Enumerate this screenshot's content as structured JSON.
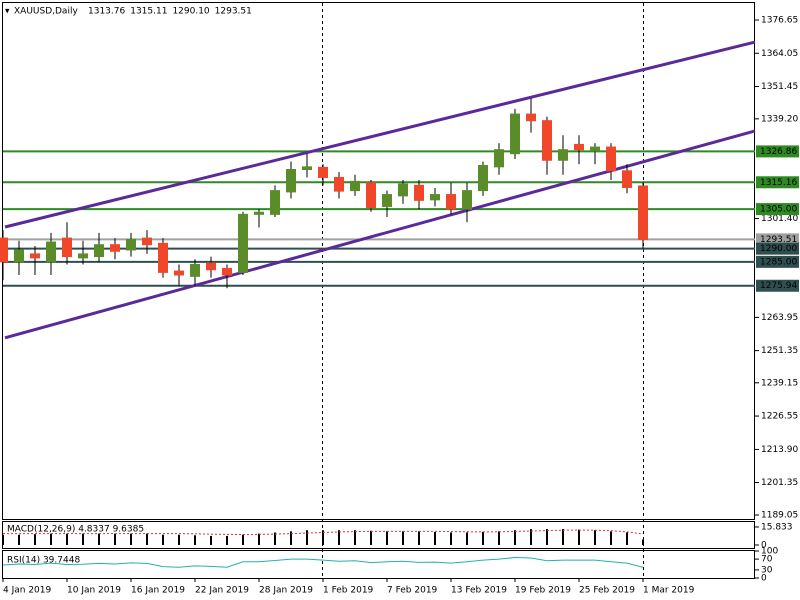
{
  "chart_data": [
    {
      "type": "candlestick",
      "title": "XAUUSD,Daily",
      "header_values": [
        "1313.76",
        "1315.11",
        "1290.10",
        "1293.51"
      ],
      "categories": [
        "4 Jan 2019",
        null,
        null,
        null,
        "10 Jan 2019",
        null,
        null,
        null,
        "16 Jan 2019",
        null,
        null,
        null,
        "22 Jan 2019",
        null,
        null,
        null,
        "28 Jan 2019",
        null,
        null,
        null,
        "1 Feb 2019",
        null,
        null,
        null,
        "7 Feb 2019",
        null,
        null,
        null,
        "13 Feb 2019",
        null,
        null,
        null,
        "19 Feb 2019",
        null,
        null,
        null,
        "25 Feb 2019",
        null,
        null,
        null,
        "1 Mar 2019"
      ],
      "open": [
        1294,
        1285,
        1288,
        1285,
        1294,
        1286.5,
        1287,
        1291.5,
        1289.5,
        1294,
        1292,
        1281.5,
        1279.5,
        1284.5,
        1282.5,
        1281,
        1303,
        1303,
        1311.5,
        1320,
        1320.8,
        1317,
        1312,
        1315,
        1306,
        1310,
        1314,
        1308.5,
        1310.5,
        1305,
        1312,
        1321,
        1326,
        1341,
        1338.5,
        1323.5,
        1329.5,
        1327,
        1328.5,
        1319.5,
        1313.76
      ],
      "high": [
        1297,
        1293,
        1291,
        1296,
        1300,
        1293,
        1296,
        1294,
        1296,
        1297,
        1294,
        1284,
        1286,
        1287,
        1284,
        1304,
        1305,
        1314,
        1323,
        1326,
        1322,
        1319,
        1318,
        1316,
        1312,
        1316,
        1316,
        1313,
        1315,
        1315,
        1323,
        1330,
        1343,
        1347,
        1340,
        1333,
        1333,
        1330,
        1330,
        1322,
        1315.11
      ],
      "low": [
        1278,
        1280,
        1280,
        1280,
        1284,
        1284,
        1285,
        1286,
        1287,
        1288,
        1279,
        1276,
        1276,
        1279,
        1275,
        1280,
        1298,
        1302,
        1309,
        1317,
        1314,
        1309,
        1310,
        1304,
        1302,
        1307,
        1305,
        1306,
        1303,
        1300,
        1310,
        1318,
        1324,
        1334,
        1318,
        1318,
        1322,
        1322,
        1316,
        1311,
        1290.1
      ],
      "close": [
        1285,
        1289.5,
        1286.5,
        1292.5,
        1287,
        1288,
        1291.5,
        1289,
        1293.5,
        1291.5,
        1281,
        1280,
        1284,
        1282,
        1280,
        1303,
        1303.8,
        1312,
        1320,
        1321,
        1317,
        1311.8,
        1315.5,
        1305.5,
        1310.5,
        1314.5,
        1308.3,
        1310.5,
        1305,
        1312,
        1321.5,
        1327.5,
        1341,
        1338.5,
        1323.5,
        1327.5,
        1327.5,
        1328.5,
        1319.5,
        1313.2,
        1293.51
      ],
      "up_color": "#5b8c2a",
      "down_color": "#f0462a",
      "ylim": [
        1187.15,
        1382.35
      ],
      "yticks": [
        1376.65,
        1364.05,
        1351.45,
        {
          "value": 1339.2,
          "label": "1339.20"
        },
        {
          "value": 1301.4,
          "label": "1301.40"
        },
        1263.95,
        1251.35,
        1239.15,
        1226.55,
        {
          "value": 1213.9,
          "label": "1213.90"
        },
        1201.35,
        1189.05
      ],
      "hlines": [
        {
          "value": 1326.86,
          "label": "1326.86",
          "color": "#2e8b22"
        },
        {
          "value": 1315.16,
          "label": "1315.16",
          "color": "#2e8b22"
        },
        {
          "value": 1305,
          "label": "1305.00",
          "color": "#2e8b22"
        },
        {
          "value": 1293.51,
          "label": "1293.51",
          "color": "#a0a0a0"
        },
        {
          "value": 1290,
          "label": "1290.00",
          "color": "#2f4f4f"
        },
        {
          "value": 1285,
          "label": "1285.00",
          "color": "#2f4f4f"
        },
        {
          "value": 1275.94,
          "label": "1275.94",
          "color": "#2f4f4f"
        }
      ],
      "trendlines": [
        {
          "from": [
            0.125,
            1298.2
          ],
          "to": [
            47,
            1368.3
          ],
          "color": "#5b2a9a"
        },
        {
          "from": [
            0.125,
            1256.2
          ],
          "to": [
            47,
            1334.6
          ],
          "color": "#5b2a9a"
        }
      ]
    },
    {
      "type": "macd",
      "title": "MACD(12,26,9) 4.8337 9.6385",
      "values": [
        9,
        9,
        9.5,
        10,
        10,
        10,
        10,
        10,
        10,
        10,
        9,
        9,
        8.5,
        8,
        8,
        9,
        10,
        11,
        12,
        13,
        13,
        13,
        13,
        12.5,
        12,
        12,
        12,
        11.5,
        11,
        11,
        11.5,
        12,
        13,
        14,
        14,
        14,
        13.5,
        13,
        12,
        11,
        4.8337
      ],
      "signal": [
        10,
        10,
        10,
        10,
        10,
        10,
        10,
        10,
        10,
        10,
        10,
        10,
        9.8,
        9.5,
        9.3,
        9.2,
        9.3,
        9.6,
        10,
        10.5,
        11,
        11.5,
        11.8,
        12,
        12,
        12,
        12,
        12,
        11.8,
        11.6,
        11.5,
        11.6,
        11.9,
        12.3,
        12.7,
        13,
        13.1,
        13,
        12.6,
        11.5,
        9.6385
      ],
      "color": "#000000",
      "signal_color": "#e03030",
      "ylim": [
        -2.64,
        20.2
      ],
      "yticks": [
        15.833,
        0
      ]
    },
    {
      "type": "line",
      "title": "RSI(14) 39.7448",
      "values": [
        48,
        52,
        50,
        55,
        50,
        51,
        54,
        52,
        56,
        54,
        42,
        40,
        45,
        43,
        40,
        60,
        60,
        65,
        70,
        70,
        66,
        62,
        64,
        57,
        60,
        62,
        58,
        59,
        55,
        60,
        66,
        70,
        76,
        74,
        64,
        66,
        66,
        66,
        60,
        55,
        39.7448
      ],
      "color": "#20b2aa",
      "ylim": [
        0,
        100
      ],
      "yticks": [
        100,
        70,
        30,
        0
      ]
    }
  ]
}
